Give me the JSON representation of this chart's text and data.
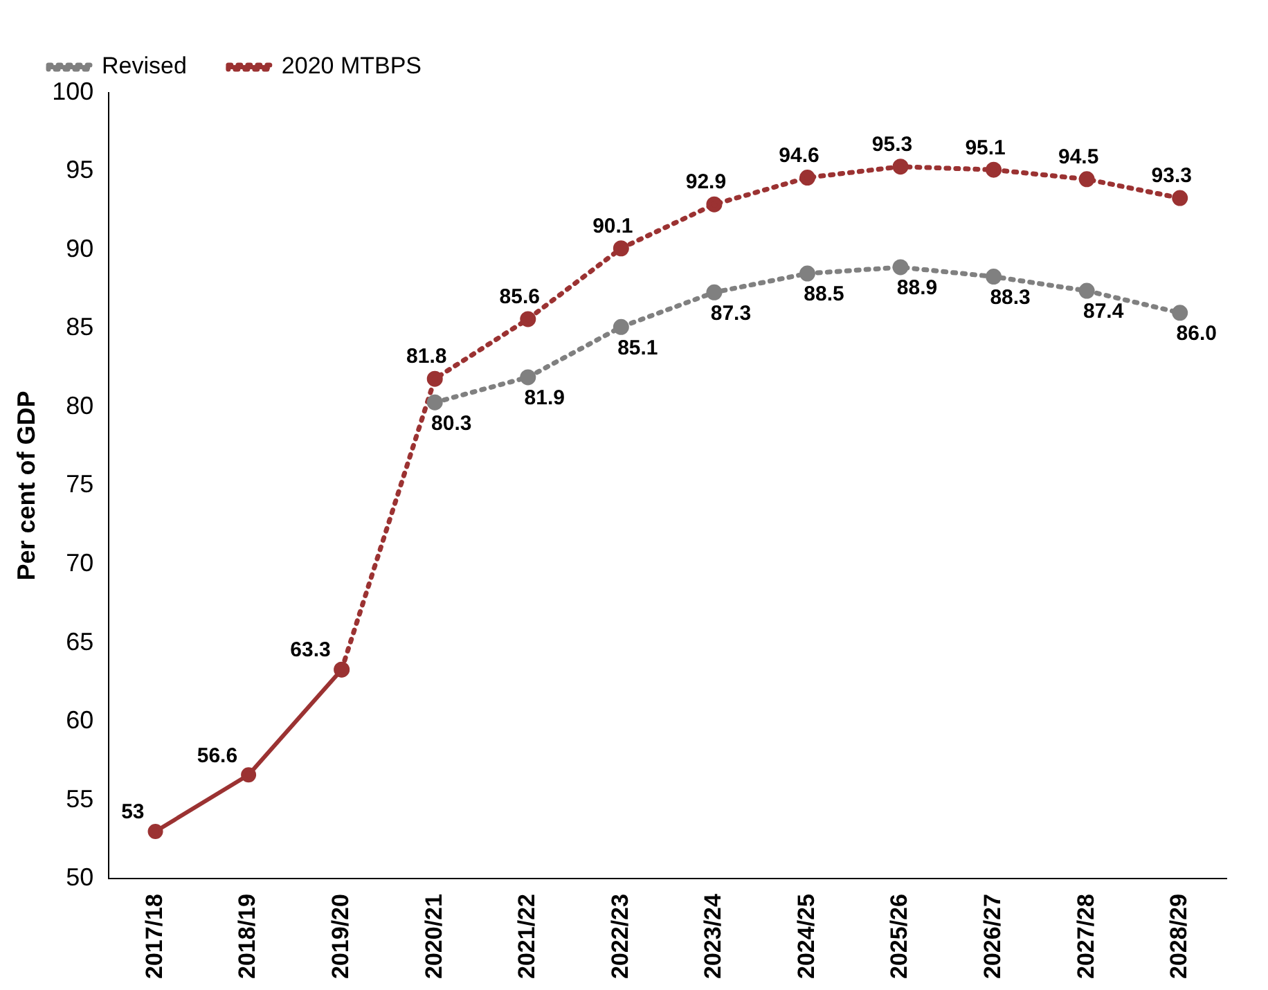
{
  "chart_data": {
    "type": "line",
    "ylabel": "Per cent of GDP",
    "categories": [
      "2017/18",
      "2018/19",
      "2019/20",
      "2020/21",
      "2021/22",
      "2022/23",
      "2023/24",
      "2024/25",
      "2025/26",
      "2026/27",
      "2027/28",
      "2028/29"
    ],
    "series": [
      {
        "color": "#9b3232",
        "line_style": "solid",
        "values": [
          53,
          56.6,
          63.3,
          null,
          null,
          null,
          null,
          null,
          null,
          null,
          null,
          null
        ],
        "value_labels": [
          "53",
          "56.6",
          "63.3",
          null,
          null,
          null,
          null,
          null,
          null,
          null,
          null,
          null
        ]
      },
      {
        "name": "Revised",
        "color": "#808080",
        "line_style": "dotted",
        "values": [
          null,
          null,
          null,
          80.3,
          81.9,
          85.1,
          87.3,
          88.5,
          88.9,
          88.3,
          87.4,
          86.0
        ],
        "value_labels": [
          null,
          null,
          null,
          "80.3",
          "81.9",
          "85.1",
          "87.3",
          "88.5",
          "88.9",
          "88.3",
          "87.4",
          "86.0"
        ]
      },
      {
        "name": "2020 MTBPS",
        "color": "#9b3232",
        "line_style": "dotted",
        "values": [
          null,
          null,
          63.3,
          81.8,
          85.6,
          90.1,
          92.9,
          94.6,
          95.3,
          95.1,
          94.5,
          93.3
        ],
        "value_labels": [
          null,
          null,
          null,
          "81.8",
          "85.6",
          "90.1",
          "92.9",
          "94.6",
          "95.3",
          "95.1",
          "94.5",
          "93.3"
        ]
      }
    ],
    "ylim": [
      50,
      100
    ],
    "yticks": [
      50,
      55,
      60,
      65,
      70,
      75,
      80,
      85,
      90,
      95,
      100
    ],
    "grid": false,
    "legend": "top left",
    "marker": "circle"
  }
}
